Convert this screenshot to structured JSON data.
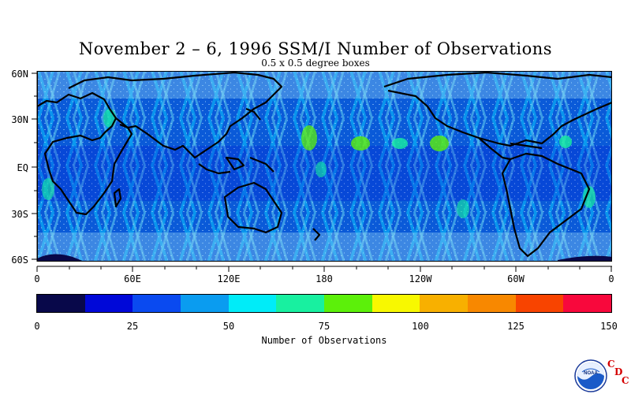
{
  "title": "November 2 – 6, 1996 SSM/I Number of Observations",
  "subtitle": "0.5 x 0.5 degree boxes",
  "lat_labels": [
    "60N",
    "30N",
    "EQ",
    "30S",
    "60S"
  ],
  "lon_labels": [
    "0",
    "60E",
    "120E",
    "180",
    "120W",
    "60W",
    "0"
  ],
  "colorbar": {
    "colors": [
      "#08084a",
      "#0008d8",
      "#0a4af0",
      "#0a9cf0",
      "#00ecf8",
      "#18f0a0",
      "#5cf00a",
      "#f8f800",
      "#f8b000",
      "#f88800",
      "#f84400",
      "#f8083c"
    ],
    "ticks": [
      "0",
      "25",
      "50",
      "75",
      "100",
      "125",
      "150"
    ],
    "label": "Number of Observations"
  },
  "logo": {
    "icon": "noaa-logo-icon",
    "text": "NOAA",
    "cdc": [
      "C",
      "D",
      "C"
    ]
  }
}
